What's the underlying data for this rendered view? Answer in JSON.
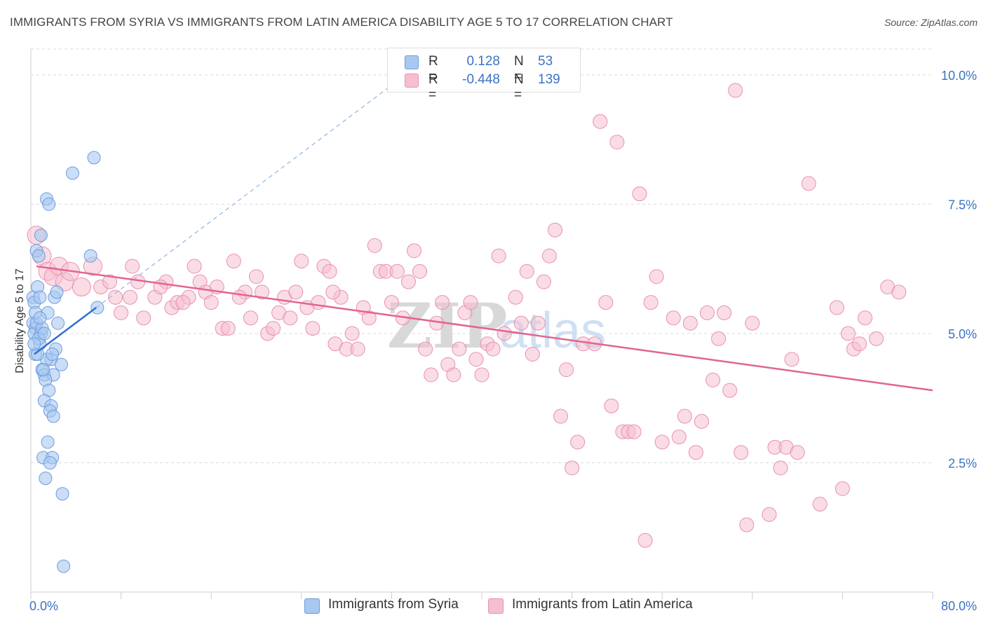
{
  "title": "IMMIGRANTS FROM SYRIA VS IMMIGRANTS FROM LATIN AMERICA DISABILITY AGE 5 TO 17 CORRELATION CHART",
  "source": "Source: ZipAtlas.com",
  "watermark": "ZIPatlas",
  "colors": {
    "syria_fill": "#a9c8f0",
    "syria_stroke": "#6c9be0",
    "syria_line": "#2f6fd0",
    "latam_fill": "#f6bfd0",
    "latam_stroke": "#e890b0",
    "latam_line": "#e2648f",
    "axis_text": "#3b72c4",
    "grid": "#d9d9d9"
  },
  "legend": {
    "r_label": "R =",
    "n_label": "N =",
    "rows": [
      {
        "r": "0.128",
        "n": "53"
      },
      {
        "r": "-0.448",
        "n": "139"
      }
    ]
  },
  "chart_data": {
    "type": "scatter",
    "xlabel": "",
    "ylabel": "Disability Age 5 to 17",
    "xlim": [
      0,
      80
    ],
    "ylim": [
      0,
      10.5
    ],
    "x_tick_labels": [
      "0.0%",
      "80.0%"
    ],
    "y_ticks": [
      2.5,
      5.0,
      7.5,
      10.0
    ],
    "y_tick_labels": [
      "2.5%",
      "5.0%",
      "7.5%",
      "10.0%"
    ],
    "grid": "horizontal dashed",
    "legend_position": "top-center",
    "series": [
      {
        "name": "Immigrants from Syria",
        "r": 0.128,
        "n": 53,
        "trend": {
          "x0": 0.3,
          "y0": 4.6,
          "x1": 5.8,
          "y1": 5.5,
          "dashed_to_x": 32.0,
          "dashed_to_y": 9.8
        },
        "points": [
          [
            0.2,
            5.7
          ],
          [
            0.3,
            5.6
          ],
          [
            0.2,
            5.2
          ],
          [
            0.4,
            5.1
          ],
          [
            0.3,
            5.0
          ],
          [
            0.5,
            5.2
          ],
          [
            0.6,
            5.9
          ],
          [
            0.8,
            5.7
          ],
          [
            0.5,
            6.6
          ],
          [
            0.9,
            6.9
          ],
          [
            0.7,
            6.5
          ],
          [
            1.4,
            7.6
          ],
          [
            1.6,
            7.5
          ],
          [
            3.7,
            8.1
          ],
          [
            5.6,
            8.4
          ],
          [
            5.3,
            6.5
          ],
          [
            2.1,
            5.7
          ],
          [
            2.3,
            5.8
          ],
          [
            1.5,
            5.4
          ],
          [
            0.4,
            4.6
          ],
          [
            1.0,
            4.3
          ],
          [
            1.2,
            4.2
          ],
          [
            2.0,
            4.2
          ],
          [
            1.8,
            4.5
          ],
          [
            2.2,
            4.7
          ],
          [
            2.7,
            4.4
          ],
          [
            1.4,
            4.5
          ],
          [
            1.9,
            4.6
          ],
          [
            1.3,
            4.1
          ],
          [
            1.6,
            3.9
          ],
          [
            1.2,
            3.7
          ],
          [
            1.8,
            3.6
          ],
          [
            1.7,
            3.5
          ],
          [
            2.0,
            3.4
          ],
          [
            1.5,
            2.9
          ],
          [
            1.1,
            2.6
          ],
          [
            1.9,
            2.6
          ],
          [
            1.7,
            2.5
          ],
          [
            1.3,
            2.2
          ],
          [
            2.8,
            1.9
          ],
          [
            2.9,
            0.5
          ],
          [
            0.9,
            5.0
          ],
          [
            0.6,
            4.6
          ],
          [
            1.0,
            5.1
          ],
          [
            5.9,
            5.5
          ],
          [
            0.8,
            4.8
          ],
          [
            0.7,
            4.9
          ],
          [
            1.1,
            4.3
          ],
          [
            0.4,
            5.4
          ],
          [
            2.4,
            5.2
          ],
          [
            0.8,
            5.3
          ],
          [
            1.2,
            5.0
          ],
          [
            0.3,
            4.8
          ]
        ]
      },
      {
        "name": "Immigrants from Latin America",
        "r": -0.448,
        "n": 139,
        "trend": {
          "x0": 0.5,
          "y0": 6.3,
          "x1": 80.0,
          "y1": 3.9
        },
        "points": [
          [
            0.5,
            6.9
          ],
          [
            1.0,
            6.5
          ],
          [
            1.5,
            6.2
          ],
          [
            2.0,
            6.1
          ],
          [
            2.5,
            6.3
          ],
          [
            3.0,
            6.0
          ],
          [
            3.5,
            6.2
          ],
          [
            4.5,
            5.9
          ],
          [
            5.5,
            6.3
          ],
          [
            6.2,
            5.9
          ],
          [
            7.0,
            6.0
          ],
          [
            7.5,
            5.7
          ],
          [
            8.0,
            5.4
          ],
          [
            8.8,
            5.7
          ],
          [
            9.5,
            6.0
          ],
          [
            10.0,
            5.3
          ],
          [
            11.0,
            5.7
          ],
          [
            12.0,
            6.0
          ],
          [
            12.5,
            5.5
          ],
          [
            13.0,
            5.6
          ],
          [
            14.0,
            5.7
          ],
          [
            14.5,
            6.3
          ],
          [
            15.0,
            6.0
          ],
          [
            15.5,
            5.8
          ],
          [
            16.0,
            5.6
          ],
          [
            17.0,
            5.1
          ],
          [
            17.5,
            5.1
          ],
          [
            18.0,
            6.4
          ],
          [
            19.0,
            5.8
          ],
          [
            19.5,
            5.3
          ],
          [
            20.0,
            6.1
          ],
          [
            20.5,
            5.8
          ],
          [
            21.0,
            5.0
          ],
          [
            21.5,
            5.1
          ],
          [
            22.0,
            5.4
          ],
          [
            22.5,
            5.7
          ],
          [
            23.0,
            5.3
          ],
          [
            23.5,
            5.8
          ],
          [
            24.0,
            6.4
          ],
          [
            24.5,
            5.5
          ],
          [
            25.0,
            5.1
          ],
          [
            25.5,
            5.6
          ],
          [
            26.0,
            6.3
          ],
          [
            26.5,
            6.2
          ],
          [
            27.0,
            4.8
          ],
          [
            27.5,
            5.7
          ],
          [
            28.0,
            4.7
          ],
          [
            28.5,
            5.0
          ],
          [
            29.0,
            4.7
          ],
          [
            29.5,
            5.5
          ],
          [
            30.0,
            5.3
          ],
          [
            30.5,
            6.7
          ],
          [
            31.0,
            6.2
          ],
          [
            31.5,
            6.2
          ],
          [
            32.0,
            5.6
          ],
          [
            32.5,
            6.2
          ],
          [
            33.0,
            5.3
          ],
          [
            34.0,
            6.6
          ],
          [
            34.5,
            6.2
          ],
          [
            35.0,
            4.7
          ],
          [
            35.5,
            4.2
          ],
          [
            36.0,
            5.2
          ],
          [
            36.5,
            5.6
          ],
          [
            37.0,
            4.4
          ],
          [
            37.5,
            4.2
          ],
          [
            38.0,
            4.7
          ],
          [
            38.5,
            5.4
          ],
          [
            39.0,
            5.6
          ],
          [
            40.0,
            4.2
          ],
          [
            40.5,
            4.8
          ],
          [
            41.0,
            4.7
          ],
          [
            41.5,
            6.5
          ],
          [
            42.0,
            5.0
          ],
          [
            43.0,
            5.7
          ],
          [
            43.5,
            5.2
          ],
          [
            44.0,
            6.2
          ],
          [
            44.5,
            4.6
          ],
          [
            45.0,
            5.2
          ],
          [
            45.5,
            6.0
          ],
          [
            46.0,
            6.5
          ],
          [
            46.5,
            7.0
          ],
          [
            47.0,
            3.4
          ],
          [
            47.5,
            4.3
          ],
          [
            48.0,
            2.4
          ],
          [
            48.5,
            2.9
          ],
          [
            49.0,
            4.8
          ],
          [
            50.0,
            4.8
          ],
          [
            50.5,
            9.1
          ],
          [
            51.0,
            5.6
          ],
          [
            51.5,
            3.6
          ],
          [
            52.0,
            8.7
          ],
          [
            52.5,
            3.1
          ],
          [
            53.0,
            3.1
          ],
          [
            53.5,
            3.1
          ],
          [
            54.0,
            7.7
          ],
          [
            54.5,
            1.0
          ],
          [
            55.0,
            5.6
          ],
          [
            55.5,
            6.1
          ],
          [
            56.0,
            2.9
          ],
          [
            57.0,
            5.3
          ],
          [
            57.5,
            3.0
          ],
          [
            58.0,
            3.4
          ],
          [
            58.5,
            5.2
          ],
          [
            59.0,
            2.7
          ],
          [
            59.5,
            3.3
          ],
          [
            60.0,
            5.4
          ],
          [
            60.5,
            4.1
          ],
          [
            61.0,
            4.9
          ],
          [
            61.5,
            5.4
          ],
          [
            62.0,
            3.9
          ],
          [
            62.5,
            9.7
          ],
          [
            63.0,
            2.7
          ],
          [
            63.5,
            1.3
          ],
          [
            64.0,
            5.2
          ],
          [
            65.5,
            1.5
          ],
          [
            66.0,
            2.8
          ],
          [
            66.5,
            2.4
          ],
          [
            67.0,
            2.8
          ],
          [
            67.5,
            4.5
          ],
          [
            68.0,
            2.7
          ],
          [
            69.0,
            7.9
          ],
          [
            70.0,
            1.7
          ],
          [
            71.5,
            5.5
          ],
          [
            72.0,
            2.0
          ],
          [
            72.5,
            5.0
          ],
          [
            73.0,
            4.7
          ],
          [
            73.5,
            4.8
          ],
          [
            74.0,
            5.3
          ],
          [
            75.0,
            4.9
          ],
          [
            76.0,
            5.9
          ],
          [
            77.0,
            5.8
          ],
          [
            9.0,
            6.3
          ],
          [
            11.5,
            5.9
          ],
          [
            13.5,
            5.6
          ],
          [
            16.5,
            5.9
          ],
          [
            18.5,
            5.7
          ],
          [
            26.8,
            5.8
          ],
          [
            33.5,
            6.0
          ],
          [
            39.5,
            4.5
          ]
        ]
      }
    ]
  },
  "bottom_legend": [
    "Immigrants from Syria",
    "Immigrants from Latin America"
  ]
}
